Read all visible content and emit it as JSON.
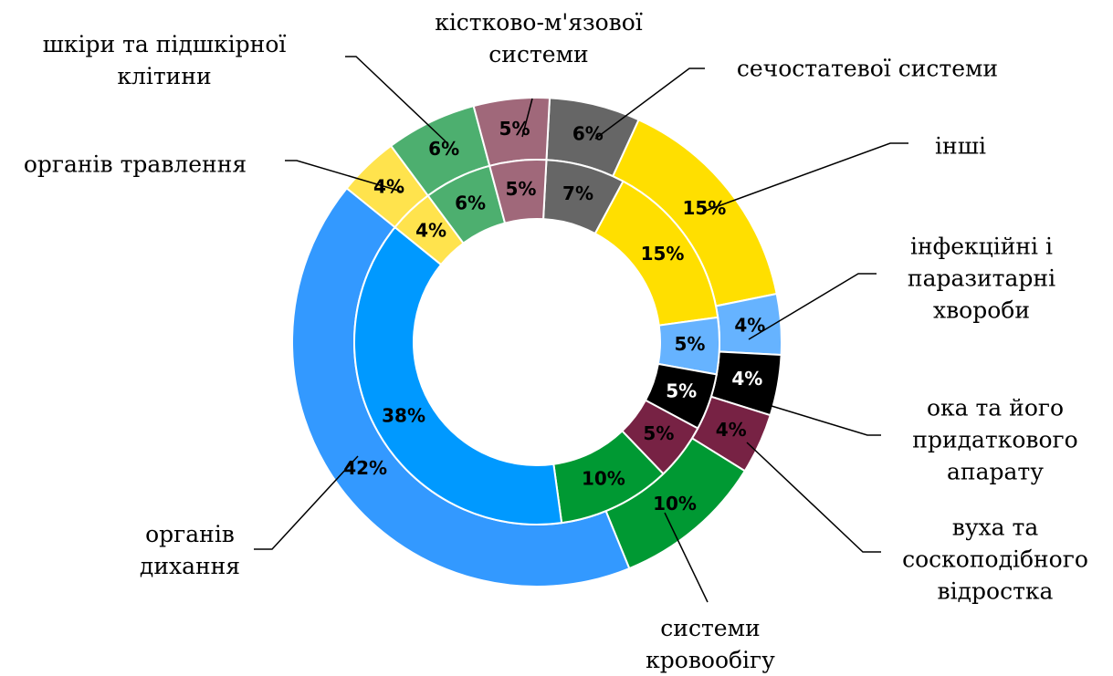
{
  "chart_data": {
    "type": "doughnut",
    "categories": [
      "сечостатевої системи",
      "інші",
      "інфекційні і паразитарні хвороби",
      "ока та його придаткового апарату",
      "вуха та соскоподібного відростка",
      "системи кровообігу",
      "органів дихання",
      "органів травлення",
      "шкіри та підшкірної клітини",
      "кістково-м'язової системи"
    ],
    "series": [
      {
        "values": [
          6,
          15,
          4,
          4,
          4,
          10,
          42,
          4,
          6,
          5
        ],
        "value_labels": [
          "6%",
          "15%",
          "4%",
          "4%",
          "4%",
          "10%",
          "42%",
          "4%",
          "6%",
          "5%"
        ],
        "colors": [
          "#666666",
          "#ffdf00",
          "#66b3ff",
          "#000000",
          "#772244",
          "#009933",
          "#3399ff",
          "#ffe34d",
          "#4daf6f",
          "#a0687a"
        ]
      },
      {
        "values": [
          7,
          15,
          5,
          5,
          5,
          10,
          38,
          4,
          6,
          5
        ],
        "value_labels": [
          "7%",
          "15%",
          "5%",
          "5%",
          "5%",
          "10%",
          "38%",
          "4%",
          "6%",
          "5%"
        ],
        "colors": [
          "#666666",
          "#ffdf00",
          "#66b3ff",
          "#000000",
          "#772244",
          "#009933",
          "#0099ff",
          "#ffe34d",
          "#4daf6f",
          "#a0687a"
        ]
      }
    ]
  }
}
